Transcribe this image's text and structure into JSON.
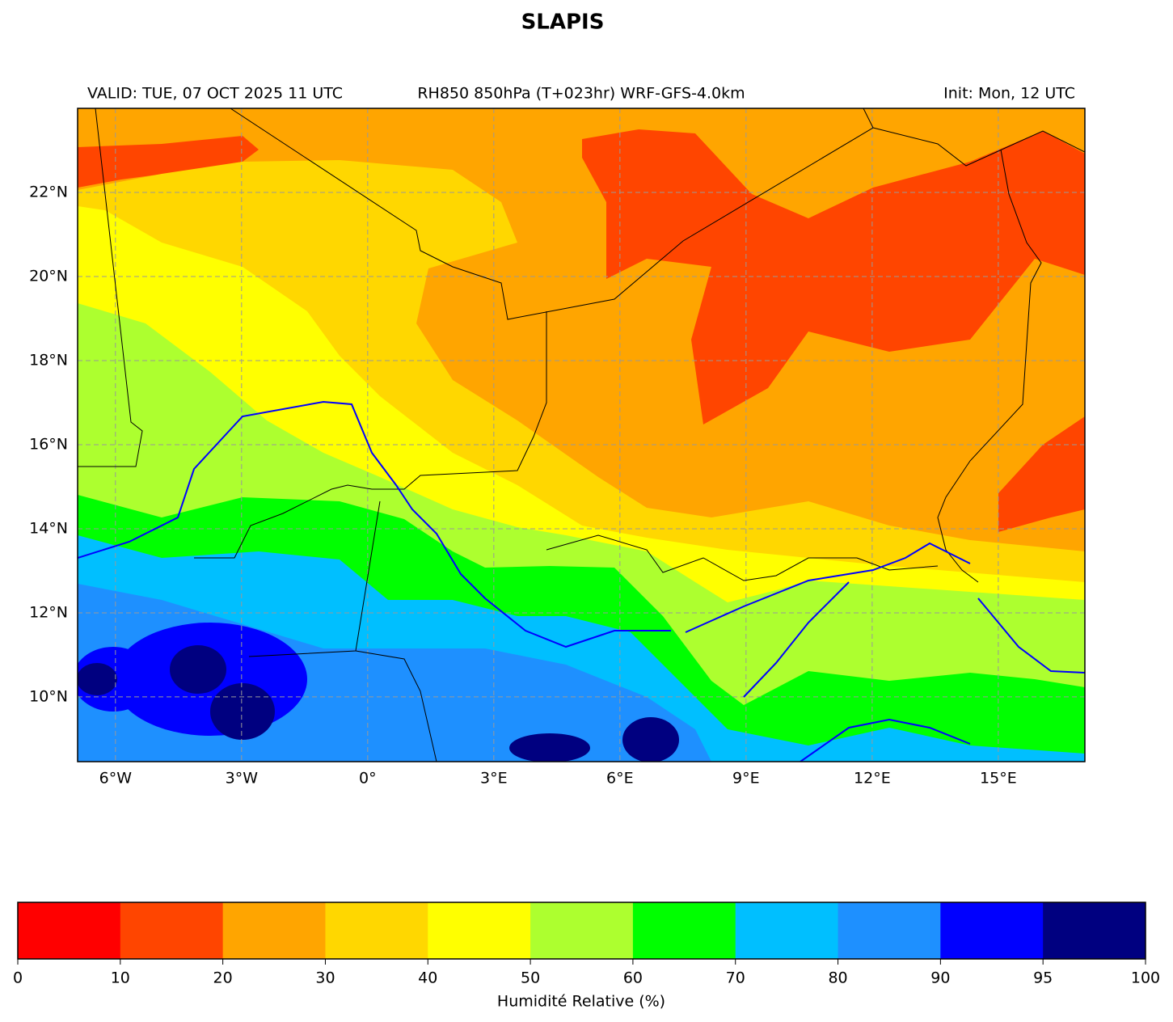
{
  "title": "SLAPIS",
  "header": {
    "valid": "VALID: TUE, 07 OCT 2025 11 UTC",
    "product": "RH850 850hPa (T+023hr) WRF-GFS-4.0km",
    "init": "Init: Mon, 12 UTC"
  },
  "map": {
    "xlim": [
      -6.9,
      17.06
    ],
    "ylim": [
      8.46,
      24
    ],
    "xticks": [
      {
        "value": -6,
        "label": "6°W"
      },
      {
        "value": -3,
        "label": "3°W"
      },
      {
        "value": 0,
        "label": "0°"
      },
      {
        "value": 3,
        "label": "3°E"
      },
      {
        "value": 6,
        "label": "6°E"
      },
      {
        "value": 9,
        "label": "9°E"
      },
      {
        "value": 12,
        "label": "12°E"
      },
      {
        "value": 15,
        "label": "15°E"
      }
    ],
    "yticks": [
      {
        "value": 10,
        "label": "10°N"
      },
      {
        "value": 12,
        "label": "12°N"
      },
      {
        "value": 14,
        "label": "14°N"
      },
      {
        "value": 16,
        "label": "16°N"
      },
      {
        "value": 18,
        "label": "18°N"
      },
      {
        "value": 20,
        "label": "20°N"
      },
      {
        "value": 22,
        "label": "22°N"
      }
    ],
    "grid": true
  },
  "colorbar": {
    "label": "Humidité Relative (%)",
    "levels": [
      0,
      10,
      20,
      30,
      40,
      50,
      60,
      70,
      80,
      90,
      95,
      100
    ],
    "colors": [
      "#ff0000",
      "#ff4500",
      "#ffa500",
      "#ffd700",
      "#ffff00",
      "#adff2f",
      "#00ff00",
      "#00bfff",
      "#1e90ff",
      "#0000ff",
      "#000080"
    ]
  }
}
